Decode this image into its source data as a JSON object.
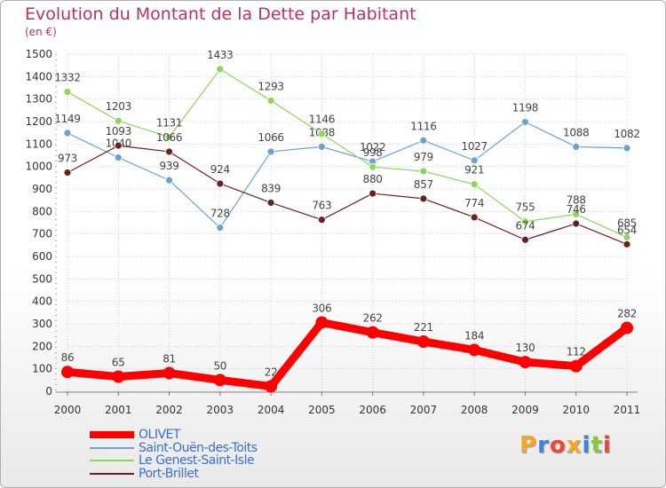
{
  "title": "Evolution du Montant de la Dette par Habitant",
  "subtitle": "(en €)",
  "logo": "Proxiti",
  "chart_data": {
    "type": "line",
    "title": "Evolution du Montant de la Dette par Habitant",
    "ylabel": "(en €)",
    "x": [
      "2000",
      "2001",
      "2002",
      "2003",
      "2004",
      "2005",
      "2006",
      "2007",
      "2008",
      "2009",
      "2010",
      "2011"
    ],
    "ylim": [
      0,
      1500
    ],
    "yticks": [
      0,
      100,
      200,
      300,
      400,
      500,
      600,
      700,
      800,
      900,
      1000,
      1100,
      1200,
      1300,
      1400,
      1500
    ],
    "grid": true,
    "legend_position": "bottom-left",
    "series": [
      {
        "name": "OLIVET",
        "color": "#ff0000",
        "values": [
          86,
          65,
          81,
          50,
          22,
          306,
          262,
          221,
          184,
          130,
          112,
          282
        ]
      },
      {
        "name": "Saint-Ouën-des-Toits",
        "color": "#6aa2d0",
        "values": [
          1149,
          1040,
          939,
          728,
          1066,
          1088,
          1022,
          1116,
          1027,
          1198,
          1088,
          1082
        ]
      },
      {
        "name": "Le Genest-Saint-Isle",
        "color": "#8dd65a",
        "values": [
          1332,
          1203,
          1131,
          1433,
          1293,
          1146,
          998,
          979,
          921,
          755,
          788,
          685
        ]
      },
      {
        "name": "Port-Brillet",
        "color": "#6b2020",
        "values": [
          973,
          1093,
          1066,
          924,
          839,
          763,
          880,
          857,
          774,
          674,
          746,
          654
        ]
      }
    ]
  }
}
